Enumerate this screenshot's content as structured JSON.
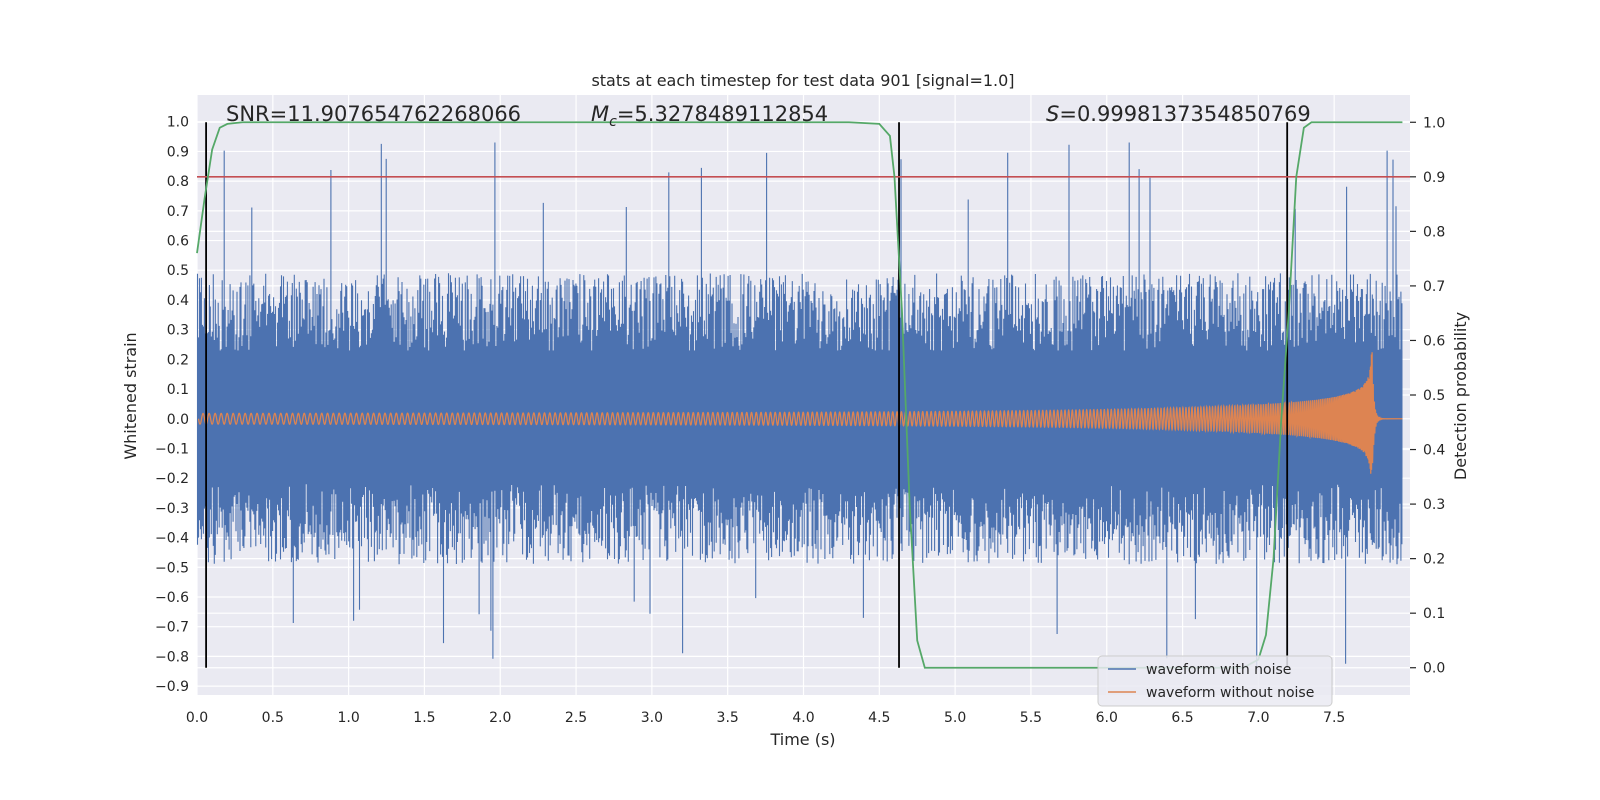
{
  "chart_data": {
    "type": "line",
    "title": "stats at each timestep for test data 901 [signal=1.0]",
    "xlabel": "Time (s)",
    "ylabel_left": "Whitened strain",
    "ylabel_right": "Detection probability",
    "xlim": [
      0.0,
      8.0
    ],
    "ylim_left": [
      -0.93,
      1.09
    ],
    "ylim_right": [
      -0.05,
      1.05
    ],
    "x_ticks": [
      "0.0",
      "0.5",
      "1.0",
      "1.5",
      "2.0",
      "2.5",
      "3.0",
      "3.5",
      "4.0",
      "4.5",
      "5.0",
      "5.5",
      "6.0",
      "6.5",
      "7.0",
      "7.5"
    ],
    "y_left_ticks": [
      "1.0",
      "0.9",
      "0.8",
      "0.7",
      "0.6",
      "0.5",
      "0.4",
      "0.3",
      "0.2",
      "0.1",
      "0.0",
      "-0.1",
      "-0.2",
      "-0.3",
      "-0.4",
      "-0.5",
      "-0.6",
      "-0.7",
      "-0.8",
      "-0.9"
    ],
    "y_right_ticks": [
      "1.0",
      "0.9",
      "0.8",
      "0.7",
      "0.6",
      "0.5",
      "0.4",
      "0.3",
      "0.2",
      "0.1",
      "0.0"
    ],
    "annotations": {
      "snr": "SNR=11.907654762268066",
      "mc_symbol": "M",
      "mc_subscript": "c",
      "mc_value": "=5.3278489112854",
      "s_symbol": "S",
      "s_value": "=0.9998137354850769"
    },
    "threshold_probability": 0.9,
    "vertical_markers_s": [
      0.06,
      4.63,
      7.19
    ],
    "series": [
      {
        "name": "waveform with noise",
        "color": "#4c72b0",
        "noise_amplitude_typical": 0.45,
        "noise_peak_max": 0.93
      },
      {
        "name": "waveform without noise",
        "color": "#dd8452",
        "chirp_start_amplitude": 0.018,
        "chirp_peak_amplitude": 0.28,
        "merger_time_s": 7.75
      },
      {
        "name": "detection probability",
        "color": "#55a868",
        "x": [
          0.0,
          0.05,
          0.1,
          0.15,
          0.2,
          0.3,
          0.4,
          0.5,
          4.3,
          4.5,
          4.57,
          4.6,
          4.65,
          4.7,
          4.75,
          4.8,
          5.0,
          6.9,
          7.0,
          7.05,
          7.1,
          7.15,
          7.2,
          7.25,
          7.3,
          7.35,
          7.45,
          7.95
        ],
        "y": [
          0.76,
          0.86,
          0.95,
          0.99,
          0.997,
          1.0,
          1.0,
          1.0,
          1.0,
          0.997,
          0.975,
          0.9,
          0.65,
          0.3,
          0.05,
          0.0,
          0.0,
          0.0,
          0.015,
          0.06,
          0.2,
          0.45,
          0.65,
          0.9,
          0.99,
          1.0,
          1.0,
          1.0
        ]
      }
    ],
    "legend": {
      "position": "bottom-right",
      "entries": [
        "waveform with noise",
        "waveform without noise"
      ]
    },
    "grid": true
  }
}
